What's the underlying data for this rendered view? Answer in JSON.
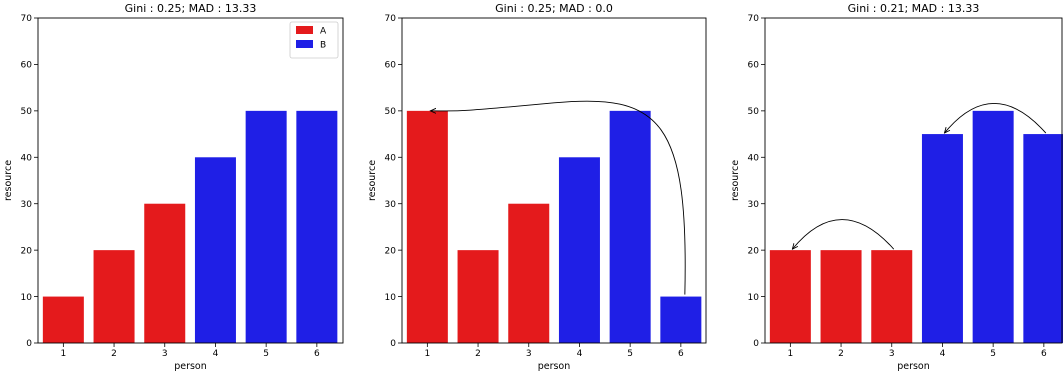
{
  "chart_data": [
    {
      "type": "bar",
      "title": "Gini : 0.25;  MAD : 13.33",
      "xlabel": "person",
      "ylabel": "resource",
      "ylim": [
        0,
        70
      ],
      "yticks": [
        "0",
        "10",
        "20",
        "30",
        "40",
        "50",
        "60",
        "70"
      ],
      "categories": [
        "1",
        "2",
        "3",
        "4",
        "5",
        "6"
      ],
      "values": [
        10,
        20,
        30,
        40,
        50,
        50
      ],
      "groups": [
        "A",
        "A",
        "A",
        "B",
        "B",
        "B"
      ],
      "legend": {
        "position": "top-right",
        "entries": [
          {
            "label": "A",
            "color": "#e41a1c"
          },
          {
            "label": "B",
            "color": "#1f1fe6"
          }
        ]
      },
      "arrows": []
    },
    {
      "type": "bar",
      "title": "Gini : 0.25;  MAD : 0.0",
      "xlabel": "person",
      "ylabel": "resource",
      "ylim": [
        0,
        70
      ],
      "yticks": [
        "0",
        "10",
        "20",
        "30",
        "40",
        "50",
        "60",
        "70"
      ],
      "categories": [
        "1",
        "2",
        "3",
        "4",
        "5",
        "6"
      ],
      "values": [
        50,
        20,
        30,
        40,
        50,
        10
      ],
      "groups": [
        "A",
        "A",
        "A",
        "B",
        "B",
        "B"
      ],
      "arrows": [
        {
          "from_person": "6",
          "to_person": "1",
          "description": "transfer from person 6 to person 1"
        }
      ]
    },
    {
      "type": "bar",
      "title": "Gini : 0.21;  MAD : 13.33",
      "xlabel": "person",
      "ylabel": "resource",
      "ylim": [
        0,
        70
      ],
      "yticks": [
        "0",
        "10",
        "20",
        "30",
        "40",
        "50",
        "60",
        "70"
      ],
      "categories": [
        "1",
        "2",
        "3",
        "4",
        "5",
        "6"
      ],
      "values": [
        20,
        20,
        20,
        45,
        50,
        45
      ],
      "groups": [
        "A",
        "A",
        "A",
        "B",
        "B",
        "B"
      ],
      "arrows": [
        {
          "from_person": "3",
          "to_person": "1",
          "description": "transfer from person 3 to person 1"
        },
        {
          "from_person": "6",
          "to_person": "4",
          "description": "transfer from person 6 to person 4"
        }
      ]
    }
  ],
  "colors": {
    "A": "#e41a1c",
    "B": "#1f1fe6"
  }
}
